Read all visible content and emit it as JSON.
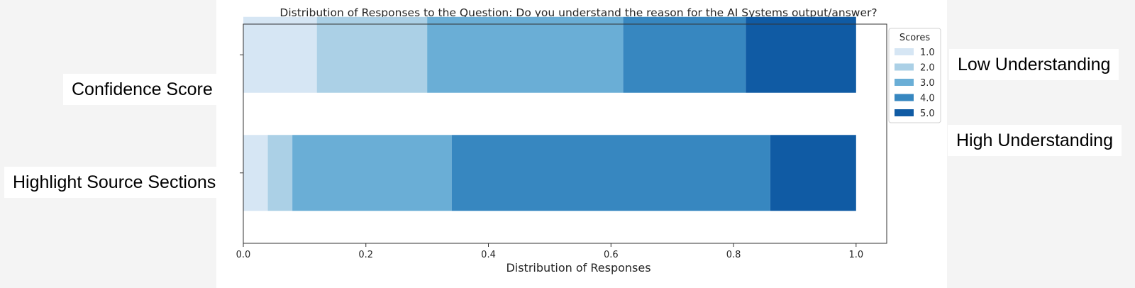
{
  "chart_data": {
    "type": "bar",
    "orientation": "horizontal",
    "stacked": true,
    "title": "Distribution of Responses to the Question: Do you understand the reason for the AI Systems output/answer?",
    "xlabel": "Distribution of Responses",
    "ylabel": "",
    "xlim": [
      0,
      1.05
    ],
    "xticks": [
      "0.0",
      "0.2",
      "0.4",
      "0.6",
      "0.8",
      "1.0"
    ],
    "categories": [
      "Confidence Score",
      "Highlight Source Sections"
    ],
    "series": [
      {
        "name": "1.0",
        "values": [
          0.12,
          0.04
        ],
        "color": "#d6e6f4"
      },
      {
        "name": "2.0",
        "values": [
          0.18,
          0.04
        ],
        "color": "#abd0e6"
      },
      {
        "name": "3.0",
        "values": [
          0.32,
          0.26
        ],
        "color": "#6aaed6"
      },
      {
        "name": "4.0",
        "values": [
          0.2,
          0.52
        ],
        "color": "#3787c0"
      },
      {
        "name": "5.0",
        "values": [
          0.18,
          0.14
        ],
        "color": "#105ba4"
      }
    ],
    "legend": {
      "title": "Scores",
      "placement": "right-outside"
    },
    "grid": false
  },
  "annotations": {
    "confidence_label": "Confidence Score",
    "highlight_label": "Highlight Source Sections",
    "low_understanding": "Low Understanding",
    "high_understanding": "High Understanding"
  }
}
